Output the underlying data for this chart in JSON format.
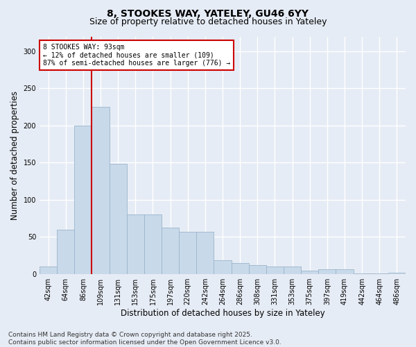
{
  "title1": "8, STOOKES WAY, YATELEY, GU46 6YY",
  "title2": "Size of property relative to detached houses in Yateley",
  "xlabel": "Distribution of detached houses by size in Yateley",
  "ylabel": "Number of detached properties",
  "bar_color": "#c8d9ea",
  "bar_edge_color": "#9ab5cc",
  "bg_color": "#e6ecf5",
  "grid_color": "#ffffff",
  "vline_color": "#cc0000",
  "annotation_text": "8 STOOKES WAY: 93sqm\n← 12% of detached houses are smaller (109)\n87% of semi-detached houses are larger (776) →",
  "annotation_box_color": "#ffffff",
  "annotation_box_edge": "#cc0000",
  "categories": [
    "42sqm",
    "64sqm",
    "86sqm",
    "109sqm",
    "131sqm",
    "153sqm",
    "175sqm",
    "197sqm",
    "220sqm",
    "242sqm",
    "264sqm",
    "286sqm",
    "308sqm",
    "331sqm",
    "353sqm",
    "375sqm",
    "397sqm",
    "419sqm",
    "442sqm",
    "464sqm",
    "486sqm"
  ],
  "values": [
    10,
    60,
    200,
    225,
    148,
    80,
    80,
    62,
    57,
    57,
    18,
    15,
    12,
    10,
    10,
    4,
    6,
    6,
    1,
    1,
    2
  ],
  "vline_bar_index": 2,
  "ylim": [
    0,
    320
  ],
  "yticks": [
    0,
    50,
    100,
    150,
    200,
    250,
    300
  ],
  "footer": "Contains HM Land Registry data © Crown copyright and database right 2025.\nContains public sector information licensed under the Open Government Licence v3.0.",
  "title_fontsize": 10,
  "subtitle_fontsize": 9,
  "tick_fontsize": 7,
  "label_fontsize": 8.5,
  "footer_fontsize": 6.5
}
